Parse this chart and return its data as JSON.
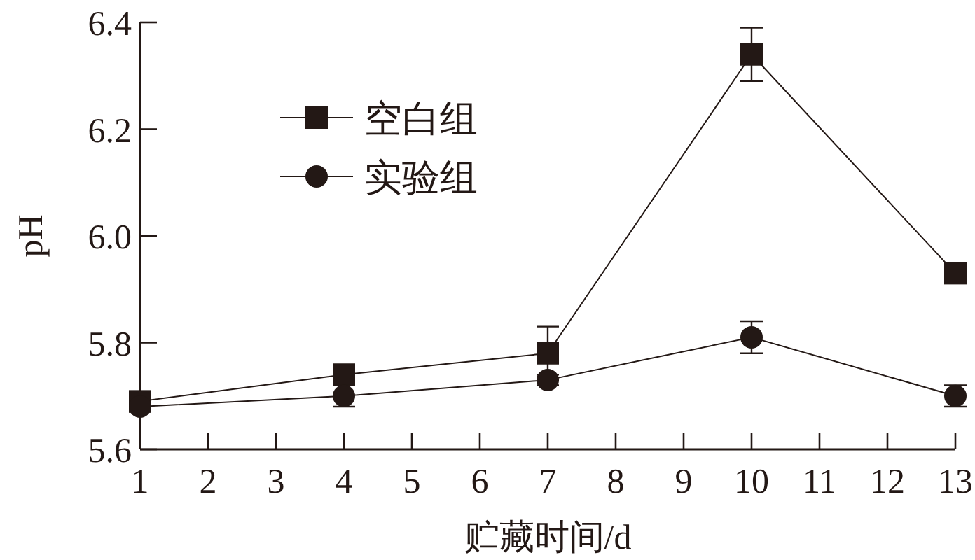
{
  "chart_data": {
    "type": "line",
    "xlabel": "贮藏时间/d",
    "ylabel": "pH",
    "x": [
      1,
      4,
      7,
      10,
      13
    ],
    "xlim": [
      1,
      13
    ],
    "xticks": [
      1,
      2,
      3,
      4,
      5,
      6,
      7,
      8,
      9,
      10,
      11,
      12,
      13
    ],
    "ylim": [
      5.6,
      6.4
    ],
    "yticks": [
      {
        "value": 5.6,
        "label": "5.6"
      },
      {
        "value": 5.8,
        "label": "5.8"
      },
      {
        "value": 6.0,
        "label": "6.0"
      },
      {
        "value": 6.2,
        "label": "6.2"
      },
      {
        "value": 6.4,
        "label": "6.4"
      }
    ],
    "legend": "top left",
    "grid": false,
    "series": [
      {
        "name": "空白组",
        "color": "#231815",
        "marker": "square",
        "values": [
          5.69,
          5.74,
          5.78,
          6.34,
          5.93
        ],
        "errors": [
          0.01,
          0.01,
          0.05,
          0.05,
          0.01
        ]
      },
      {
        "name": "实验组",
        "color": "#231815",
        "marker": "circle",
        "values": [
          5.68,
          5.7,
          5.73,
          5.81,
          5.7
        ],
        "errors": [
          0.01,
          0.02,
          0.01,
          0.03,
          0.02
        ]
      }
    ]
  }
}
